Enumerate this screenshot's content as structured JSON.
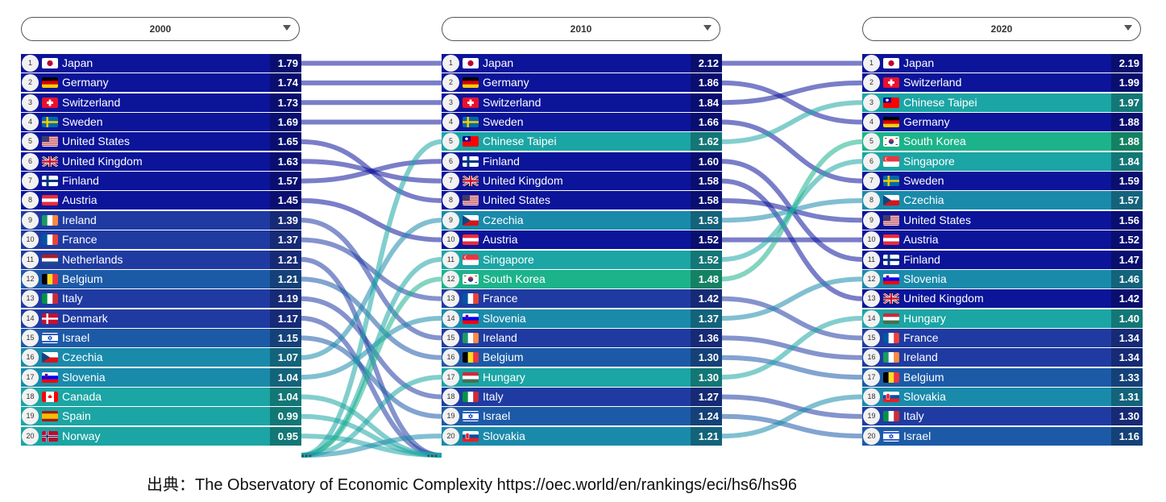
{
  "source_text": "出典：The Observatory of Economic Complexity https://oec.world/en/rankings/eci/hs6/hs96",
  "palette": {
    "navy": "#0c149a",
    "blue": "#1f3ba2",
    "steel": "#1c5aa7",
    "teal": "#1a8aab",
    "tealgreen": "#1ba5a4",
    "green": "#1db38a"
  },
  "panels": [
    {
      "year": "2000",
      "rows": [
        {
          "rank": "1",
          "country": "Japan",
          "value": "1.79",
          "flag": "jp"
        },
        {
          "rank": "2",
          "country": "Germany",
          "value": "1.74",
          "flag": "de"
        },
        {
          "rank": "3",
          "country": "Switzerland",
          "value": "1.73",
          "flag": "ch"
        },
        {
          "rank": "4",
          "country": "Sweden",
          "value": "1.69",
          "flag": "se"
        },
        {
          "rank": "5",
          "country": "United States",
          "value": "1.65",
          "flag": "us"
        },
        {
          "rank": "6",
          "country": "United Kingdom",
          "value": "1.63",
          "flag": "gb"
        },
        {
          "rank": "7",
          "country": "Finland",
          "value": "1.57",
          "flag": "fi"
        },
        {
          "rank": "8",
          "country": "Austria",
          "value": "1.45",
          "flag": "at"
        },
        {
          "rank": "9",
          "country": "Ireland",
          "value": "1.39",
          "flag": "ie"
        },
        {
          "rank": "10",
          "country": "France",
          "value": "1.37",
          "flag": "fr"
        },
        {
          "rank": "11",
          "country": "Netherlands",
          "value": "1.21",
          "flag": "nl"
        },
        {
          "rank": "12",
          "country": "Belgium",
          "value": "1.21",
          "flag": "be"
        },
        {
          "rank": "13",
          "country": "Italy",
          "value": "1.19",
          "flag": "it"
        },
        {
          "rank": "14",
          "country": "Denmark",
          "value": "1.17",
          "flag": "dk"
        },
        {
          "rank": "15",
          "country": "Israel",
          "value": "1.15",
          "flag": "il"
        },
        {
          "rank": "16",
          "country": "Czechia",
          "value": "1.07",
          "flag": "cz"
        },
        {
          "rank": "17",
          "country": "Slovenia",
          "value": "1.04",
          "flag": "si"
        },
        {
          "rank": "18",
          "country": "Canada",
          "value": "1.04",
          "flag": "ca"
        },
        {
          "rank": "19",
          "country": "Spain",
          "value": "0.99",
          "flag": "es"
        },
        {
          "rank": "20",
          "country": "Norway",
          "value": "0.95",
          "flag": "no"
        }
      ]
    },
    {
      "year": "2010",
      "rows": [
        {
          "rank": "1",
          "country": "Japan",
          "value": "2.12",
          "flag": "jp"
        },
        {
          "rank": "2",
          "country": "Germany",
          "value": "1.86",
          "flag": "de"
        },
        {
          "rank": "3",
          "country": "Switzerland",
          "value": "1.84",
          "flag": "ch"
        },
        {
          "rank": "4",
          "country": "Sweden",
          "value": "1.66",
          "flag": "se"
        },
        {
          "rank": "5",
          "country": "Chinese Taipei",
          "value": "1.62",
          "flag": "tw"
        },
        {
          "rank": "6",
          "country": "Finland",
          "value": "1.60",
          "flag": "fi"
        },
        {
          "rank": "7",
          "country": "United Kingdom",
          "value": "1.58",
          "flag": "gb"
        },
        {
          "rank": "8",
          "country": "United States",
          "value": "1.58",
          "flag": "us"
        },
        {
          "rank": "9",
          "country": "Czechia",
          "value": "1.53",
          "flag": "cz"
        },
        {
          "rank": "10",
          "country": "Austria",
          "value": "1.52",
          "flag": "at"
        },
        {
          "rank": "11",
          "country": "Singapore",
          "value": "1.52",
          "flag": "sg"
        },
        {
          "rank": "12",
          "country": "South Korea",
          "value": "1.48",
          "flag": "kr"
        },
        {
          "rank": "13",
          "country": "France",
          "value": "1.42",
          "flag": "fr"
        },
        {
          "rank": "14",
          "country": "Slovenia",
          "value": "1.37",
          "flag": "si"
        },
        {
          "rank": "15",
          "country": "Ireland",
          "value": "1.36",
          "flag": "ie"
        },
        {
          "rank": "16",
          "country": "Belgium",
          "value": "1.30",
          "flag": "be"
        },
        {
          "rank": "17",
          "country": "Hungary",
          "value": "1.30",
          "flag": "hu"
        },
        {
          "rank": "18",
          "country": "Italy",
          "value": "1.27",
          "flag": "it"
        },
        {
          "rank": "19",
          "country": "Israel",
          "value": "1.24",
          "flag": "il"
        },
        {
          "rank": "20",
          "country": "Slovakia",
          "value": "1.21",
          "flag": "sk"
        }
      ]
    },
    {
      "year": "2020",
      "rows": [
        {
          "rank": "1",
          "country": "Japan",
          "value": "2.19",
          "flag": "jp"
        },
        {
          "rank": "2",
          "country": "Switzerland",
          "value": "1.99",
          "flag": "ch"
        },
        {
          "rank": "3",
          "country": "Chinese Taipei",
          "value": "1.97",
          "flag": "tw"
        },
        {
          "rank": "4",
          "country": "Germany",
          "value": "1.88",
          "flag": "de"
        },
        {
          "rank": "5",
          "country": "South Korea",
          "value": "1.88",
          "flag": "kr"
        },
        {
          "rank": "6",
          "country": "Singapore",
          "value": "1.84",
          "flag": "sg"
        },
        {
          "rank": "7",
          "country": "Sweden",
          "value": "1.59",
          "flag": "se"
        },
        {
          "rank": "8",
          "country": "Czechia",
          "value": "1.57",
          "flag": "cz"
        },
        {
          "rank": "9",
          "country": "United States",
          "value": "1.56",
          "flag": "us"
        },
        {
          "rank": "10",
          "country": "Austria",
          "value": "1.52",
          "flag": "at"
        },
        {
          "rank": "11",
          "country": "Finland",
          "value": "1.47",
          "flag": "fi"
        },
        {
          "rank": "12",
          "country": "Slovenia",
          "value": "1.46",
          "flag": "si"
        },
        {
          "rank": "13",
          "country": "United Kingdom",
          "value": "1.42",
          "flag": "gb"
        },
        {
          "rank": "14",
          "country": "Hungary",
          "value": "1.40",
          "flag": "hu"
        },
        {
          "rank": "15",
          "country": "France",
          "value": "1.34",
          "flag": "fr"
        },
        {
          "rank": "16",
          "country": "Ireland",
          "value": "1.34",
          "flag": "ie"
        },
        {
          "rank": "17",
          "country": "Belgium",
          "value": "1.33",
          "flag": "be"
        },
        {
          "rank": "18",
          "country": "Slovakia",
          "value": "1.31",
          "flag": "sk"
        },
        {
          "rank": "19",
          "country": "Italy",
          "value": "1.30",
          "flag": "it"
        },
        {
          "rank": "20",
          "country": "Israel",
          "value": "1.16",
          "flag": "il"
        }
      ]
    }
  ],
  "chart_data": {
    "type": "table",
    "subtype": "bump-chart ranking table",
    "columns": [
      "2000",
      "2010",
      "2020"
    ],
    "rankings": {
      "2000": [
        [
          "Japan",
          1.79
        ],
        [
          "Germany",
          1.74
        ],
        [
          "Switzerland",
          1.73
        ],
        [
          "Sweden",
          1.69
        ],
        [
          "United States",
          1.65
        ],
        [
          "United Kingdom",
          1.63
        ],
        [
          "Finland",
          1.57
        ],
        [
          "Austria",
          1.45
        ],
        [
          "Ireland",
          1.39
        ],
        [
          "France",
          1.37
        ],
        [
          "Netherlands",
          1.21
        ],
        [
          "Belgium",
          1.21
        ],
        [
          "Italy",
          1.19
        ],
        [
          "Denmark",
          1.17
        ],
        [
          "Israel",
          1.15
        ],
        [
          "Czechia",
          1.07
        ],
        [
          "Slovenia",
          1.04
        ],
        [
          "Canada",
          1.04
        ],
        [
          "Spain",
          0.99
        ],
        [
          "Norway",
          0.95
        ]
      ],
      "2010": [
        [
          "Japan",
          2.12
        ],
        [
          "Germany",
          1.86
        ],
        [
          "Switzerland",
          1.84
        ],
        [
          "Sweden",
          1.66
        ],
        [
          "Chinese Taipei",
          1.62
        ],
        [
          "Finland",
          1.6
        ],
        [
          "United Kingdom",
          1.58
        ],
        [
          "United States",
          1.58
        ],
        [
          "Czechia",
          1.53
        ],
        [
          "Austria",
          1.52
        ],
        [
          "Singapore",
          1.52
        ],
        [
          "South Korea",
          1.48
        ],
        [
          "France",
          1.42
        ],
        [
          "Slovenia",
          1.37
        ],
        [
          "Ireland",
          1.36
        ],
        [
          "Belgium",
          1.3
        ],
        [
          "Hungary",
          1.3
        ],
        [
          "Italy",
          1.27
        ],
        [
          "Israel",
          1.24
        ],
        [
          "Slovakia",
          1.21
        ]
      ],
      "2020": [
        [
          "Japan",
          2.19
        ],
        [
          "Switzerland",
          1.99
        ],
        [
          "Chinese Taipei",
          1.97
        ],
        [
          "Germany",
          1.88
        ],
        [
          "South Korea",
          1.88
        ],
        [
          "Singapore",
          1.84
        ],
        [
          "Sweden",
          1.59
        ],
        [
          "Czechia",
          1.57
        ],
        [
          "United States",
          1.56
        ],
        [
          "Austria",
          1.52
        ],
        [
          "Finland",
          1.47
        ],
        [
          "Slovenia",
          1.46
        ],
        [
          "United Kingdom",
          1.42
        ],
        [
          "Hungary",
          1.4
        ],
        [
          "France",
          1.34
        ],
        [
          "Ireland",
          1.34
        ],
        [
          "Belgium",
          1.33
        ],
        [
          "Slovakia",
          1.31
        ],
        [
          "Italy",
          1.3
        ],
        [
          "Israel",
          1.16
        ]
      ]
    }
  }
}
